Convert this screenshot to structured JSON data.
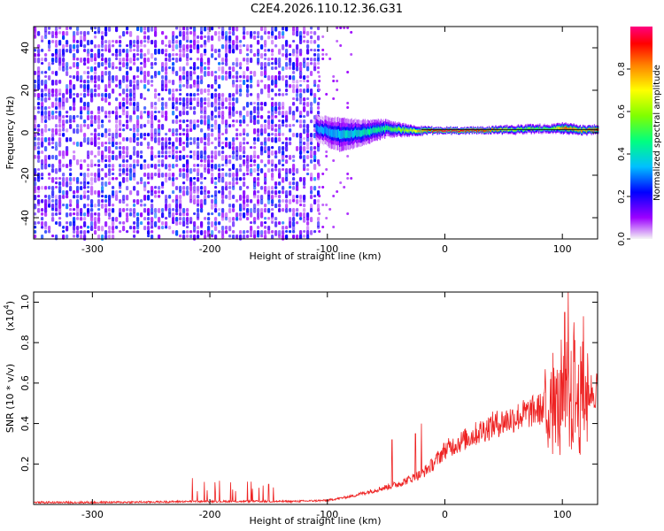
{
  "title": "C2E4.2026.110.12.36.G31",
  "chart_data": [
    {
      "type": "heatmap",
      "name": "spectrogram",
      "xlabel": "Height of straight line (km)",
      "ylabel": "Frequency (Hz)",
      "xlim": [
        -350,
        130
      ],
      "ylim": [
        -50,
        50
      ],
      "xticks": [
        -300,
        -200,
        -100,
        0,
        100
      ],
      "xtick_labels": [
        "-300",
        "-200",
        "-100",
        "0",
        "100"
      ],
      "yticks": [
        -40,
        -20,
        0,
        20,
        40
      ],
      "ytick_labels": [
        "-40",
        "-20",
        "0",
        "20",
        "40"
      ],
      "noise_region": {
        "x_range": [
          -350,
          -108
        ],
        "freq_range": [
          -50,
          50
        ],
        "amplitude_range": [
          0.05,
          0.25
        ]
      },
      "sparse_region": {
        "x_range": [
          -108,
          -80
        ],
        "freq_range": [
          -50,
          50
        ]
      },
      "signal_band": [
        {
          "x": -110,
          "freq": 2,
          "width": 12,
          "amp": 0.3
        },
        {
          "x": -90,
          "freq": -1,
          "width": 16,
          "amp": 0.35
        },
        {
          "x": -70,
          "freq": 0,
          "width": 12,
          "amp": 0.4
        },
        {
          "x": -50,
          "freq": 2,
          "width": 8,
          "amp": 0.45
        },
        {
          "x": -30,
          "freq": 1,
          "width": 5,
          "amp": 0.6
        },
        {
          "x": -10,
          "freq": 1,
          "width": 3,
          "amp": 0.9
        },
        {
          "x": 0,
          "freq": 1,
          "width": 3,
          "amp": 0.95
        },
        {
          "x": 30,
          "freq": 1,
          "width": 3,
          "amp": 0.9
        },
        {
          "x": 60,
          "freq": 1.5,
          "width": 4,
          "amp": 0.55
        },
        {
          "x": 90,
          "freq": 2,
          "width": 4,
          "amp": 0.5
        },
        {
          "x": 100,
          "freq": 2,
          "width": 5,
          "amp": 0.8
        },
        {
          "x": 120,
          "freq": 1,
          "width": 4,
          "amp": 0.75
        },
        {
          "x": 130,
          "freq": 2,
          "width": 4,
          "amp": 0.85
        }
      ]
    },
    {
      "type": "colorbar",
      "name": "colorbar",
      "label": "Normalized spectral amplitude",
      "range": [
        0,
        1
      ],
      "ticks": [
        0.0,
        0.2,
        0.4,
        0.6,
        0.8
      ],
      "tick_labels": [
        "0.0",
        "0.2",
        "0.4",
        "0.6",
        "0.8"
      ],
      "colormap": [
        "#f5f5f5",
        "#9c00ff",
        "#0000ff",
        "#00c0ff",
        "#00ff80",
        "#80ff00",
        "#ffff00",
        "#ff8000",
        "#ff0000",
        "#ff0080"
      ]
    },
    {
      "type": "line",
      "name": "snr",
      "xlabel": "Height of straight line (km)",
      "ylabel": "SNR (10 * v/v)",
      "yscale_label": "(x10",
      "yscale_exp": "4",
      "yscale_close": ")",
      "xlim": [
        -350,
        130
      ],
      "ylim": [
        0,
        1.05
      ],
      "xticks": [
        -300,
        -200,
        -100,
        0,
        100
      ],
      "xtick_labels": [
        "-300",
        "-200",
        "-100",
        "0",
        "100"
      ],
      "yticks": [
        0.2,
        0.4,
        0.6,
        0.8,
        1.0
      ],
      "ytick_labels": [
        "0.2",
        "0.4",
        "0.6",
        "0.8",
        "1.0"
      ],
      "color": "#ee2222",
      "envelope": [
        {
          "x": -350,
          "y": 0.01
        },
        {
          "x": -300,
          "y": 0.01
        },
        {
          "x": -250,
          "y": 0.012
        },
        {
          "x": -215,
          "y": 0.015
        },
        {
          "x": -200,
          "y": 0.015
        },
        {
          "x": -150,
          "y": 0.015
        },
        {
          "x": -130,
          "y": 0.015
        },
        {
          "x": -100,
          "y": 0.02
        },
        {
          "x": -80,
          "y": 0.04
        },
        {
          "x": -60,
          "y": 0.07
        },
        {
          "x": -40,
          "y": 0.1
        },
        {
          "x": -20,
          "y": 0.15
        },
        {
          "x": -10,
          "y": 0.2
        },
        {
          "x": 0,
          "y": 0.27
        },
        {
          "x": 20,
          "y": 0.33
        },
        {
          "x": 40,
          "y": 0.39
        },
        {
          "x": 60,
          "y": 0.43
        },
        {
          "x": 80,
          "y": 0.47
        },
        {
          "x": 95,
          "y": 0.49
        },
        {
          "x": 110,
          "y": 0.53
        },
        {
          "x": 130,
          "y": 0.57
        }
      ],
      "spikes": [
        {
          "x": -215,
          "y": 0.13
        },
        {
          "x": -150,
          "y": 0.1
        },
        {
          "x": -45,
          "y": 0.32
        },
        {
          "x": -25,
          "y": 0.35
        },
        {
          "x": -20,
          "y": 0.4
        },
        {
          "x": 90,
          "y": 0.62
        },
        {
          "x": 97,
          "y": 0.65
        },
        {
          "x": 102,
          "y": 0.95
        },
        {
          "x": 105,
          "y": 1.05
        },
        {
          "x": 110,
          "y": 0.9
        },
        {
          "x": 118,
          "y": 0.93
        }
      ]
    }
  ]
}
